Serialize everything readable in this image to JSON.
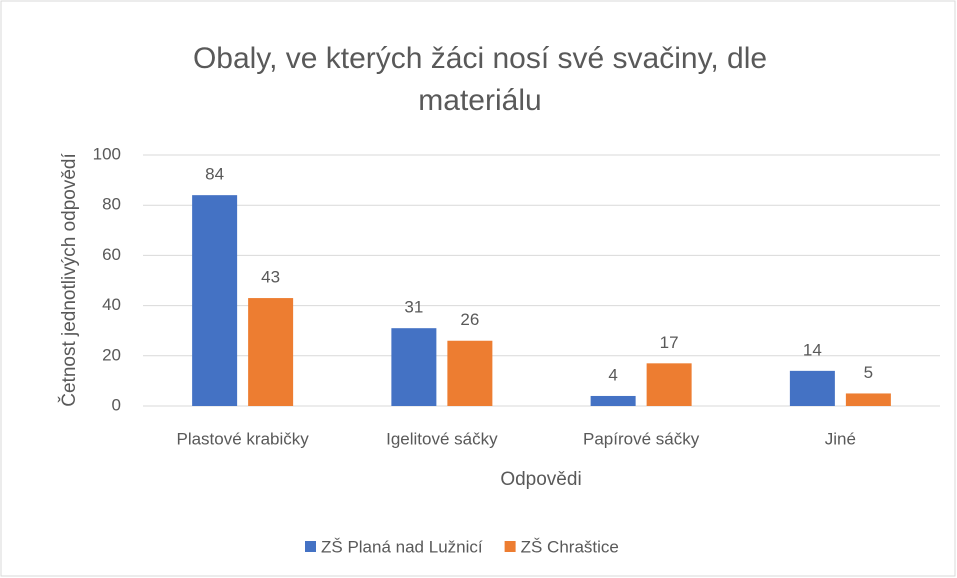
{
  "chart_data": {
    "type": "bar",
    "title": "Obaly, ve kterých žáci nosí své svačiny, dle materiálu",
    "x_label": "Odpovědi",
    "y_label": "Četnost jednotlivých odpovědí",
    "categories": [
      "Plastové krabičky",
      "Igelitové sáčky",
      "Papírové sáčky",
      "Jiné"
    ],
    "series": [
      {
        "name": "ZŠ Planá nad Lužnicí",
        "color": "#4472c4",
        "values": [
          84,
          31,
          4,
          14
        ]
      },
      {
        "name": "ZŠ Chraštice",
        "color": "#ed7d31",
        "values": [
          43,
          26,
          17,
          5
        ]
      }
    ],
    "ylim": [
      0,
      100
    ],
    "yticks": [
      0,
      20,
      40,
      60,
      80,
      100
    ],
    "grid": true,
    "legend": "bottom"
  }
}
